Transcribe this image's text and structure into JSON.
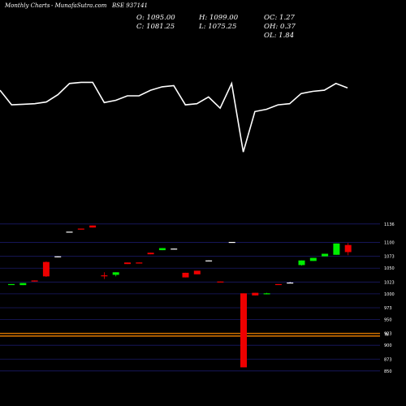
{
  "header": {
    "left": "Monthly Charts",
    "site": "- MunafaSutra.com",
    "symbol": "BSE 937141"
  },
  "ohlc": {
    "open": "O: 1095.00",
    "close": "C: 1081.25",
    "high": "H: 1099.00",
    "low": "L: 1075.25",
    "oc": "OC: 1.27",
    "oh": "OH: 0.37",
    "ol": "OL: 1.84"
  },
  "colors": {
    "up": "#00ee00",
    "down": "#ee0000",
    "flat": "#ffffff",
    "line": "#ffffff",
    "grid": "#1a1a66",
    "support": "#d07000"
  },
  "chart_data": {
    "type": "candlestick",
    "y_ticks": [
      1136,
      1100,
      1073,
      1050,
      1023,
      1000,
      973,
      950,
      923,
      900,
      873,
      850
    ],
    "ylim": [
      845,
      1142
    ],
    "support_levels": [
      923,
      918
    ],
    "marker_label": "W",
    "candles": [
      {
        "o": 1018,
        "h": 1019,
        "l": 1018,
        "c": 1019
      },
      {
        "o": 1017,
        "h": 1021,
        "l": 1017,
        "c": 1021
      },
      {
        "o": 1026,
        "h": 1026,
        "l": 1024,
        "c": 1024
      },
      {
        "o": 1062,
        "h": 1063,
        "l": 1033,
        "c": 1034
      },
      {
        "o": 1073,
        "h": 1073,
        "l": 1071,
        "c": 1073
      },
      {
        "o": 1121,
        "h": 1121,
        "l": 1121,
        "c": 1121
      },
      {
        "o": 1127,
        "h": 1127,
        "l": 1125,
        "c": 1125
      },
      {
        "o": 1133,
        "h": 1133,
        "l": 1129,
        "c": 1129
      },
      {
        "o": 1036,
        "h": 1042,
        "l": 1029,
        "c": 1035
      },
      {
        "o": 1037,
        "h": 1042,
        "l": 1034,
        "c": 1042
      },
      {
        "o": 1061,
        "h": 1061,
        "l": 1058,
        "c": 1058
      },
      {
        "o": 1061,
        "h": 1061,
        "l": 1059,
        "c": 1059
      },
      {
        "o": 1080,
        "h": 1080,
        "l": 1077,
        "c": 1077
      },
      {
        "o": 1085,
        "h": 1089,
        "l": 1085,
        "c": 1089
      },
      {
        "o": 1088,
        "h": 1088,
        "l": 1087,
        "c": 1088
      },
      {
        "o": 1041,
        "h": 1041,
        "l": 1032,
        "c": 1032
      },
      {
        "o": 1045,
        "h": 1045,
        "l": 1038,
        "c": 1038
      },
      {
        "o": 1065,
        "h": 1065,
        "l": 1064,
        "c": 1065
      },
      {
        "o": 1024,
        "h": 1024,
        "l": 1023,
        "c": 1023
      },
      {
        "o": 1101,
        "h": 1101,
        "l": 1101,
        "c": 1101
      },
      {
        "o": 1001,
        "h": 1001,
        "l": 857,
        "c": 857
      },
      {
        "o": 1002,
        "h": 1002,
        "l": 997,
        "c": 997
      },
      {
        "o": 1000,
        "h": 1002,
        "l": 999,
        "c": 1001
      },
      {
        "o": 1019,
        "h": 1019,
        "l": 1018,
        "c": 1018
      },
      {
        "o": 1022,
        "h": 1023,
        "l": 1021,
        "c": 1022
      },
      {
        "o": 1056,
        "h": 1065,
        "l": 1055,
        "c": 1065
      },
      {
        "o": 1064,
        "h": 1070,
        "l": 1064,
        "c": 1070
      },
      {
        "o": 1073,
        "h": 1078,
        "l": 1073,
        "c": 1078
      },
      {
        "o": 1076,
        "h": 1098,
        "l": 1076,
        "c": 1098
      },
      {
        "o": 1095,
        "h": 1099,
        "l": 1075.25,
        "c": 1081.25
      }
    ],
    "line_series": [
      0.58,
      0.71,
      0.705,
      0.7,
      0.685,
      0.62,
      0.52,
      0.51,
      0.51,
      0.69,
      0.67,
      0.63,
      0.63,
      0.58,
      0.55,
      0.54,
      0.71,
      0.7,
      0.64,
      0.74,
      0.52,
      1.13,
      0.77,
      0.75,
      0.71,
      0.7,
      0.61,
      0.59,
      0.58,
      0.52,
      0.56
    ]
  }
}
